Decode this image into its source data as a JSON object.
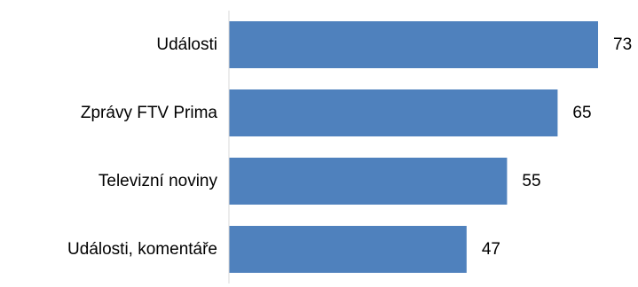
{
  "chart_data": {
    "type": "bar",
    "orientation": "horizontal",
    "categories": [
      "Události",
      "Zprávy FTV Prima",
      "Televizní noviny",
      "Události, komentáře"
    ],
    "values": [
      73,
      65,
      55,
      47
    ],
    "title": "",
    "xlabel": "",
    "ylabel": "",
    "xlim": [
      0,
      75
    ],
    "grid": false,
    "legend": "none",
    "bar_color": "#4F81BD",
    "axis_color": "#D9D9D9"
  }
}
